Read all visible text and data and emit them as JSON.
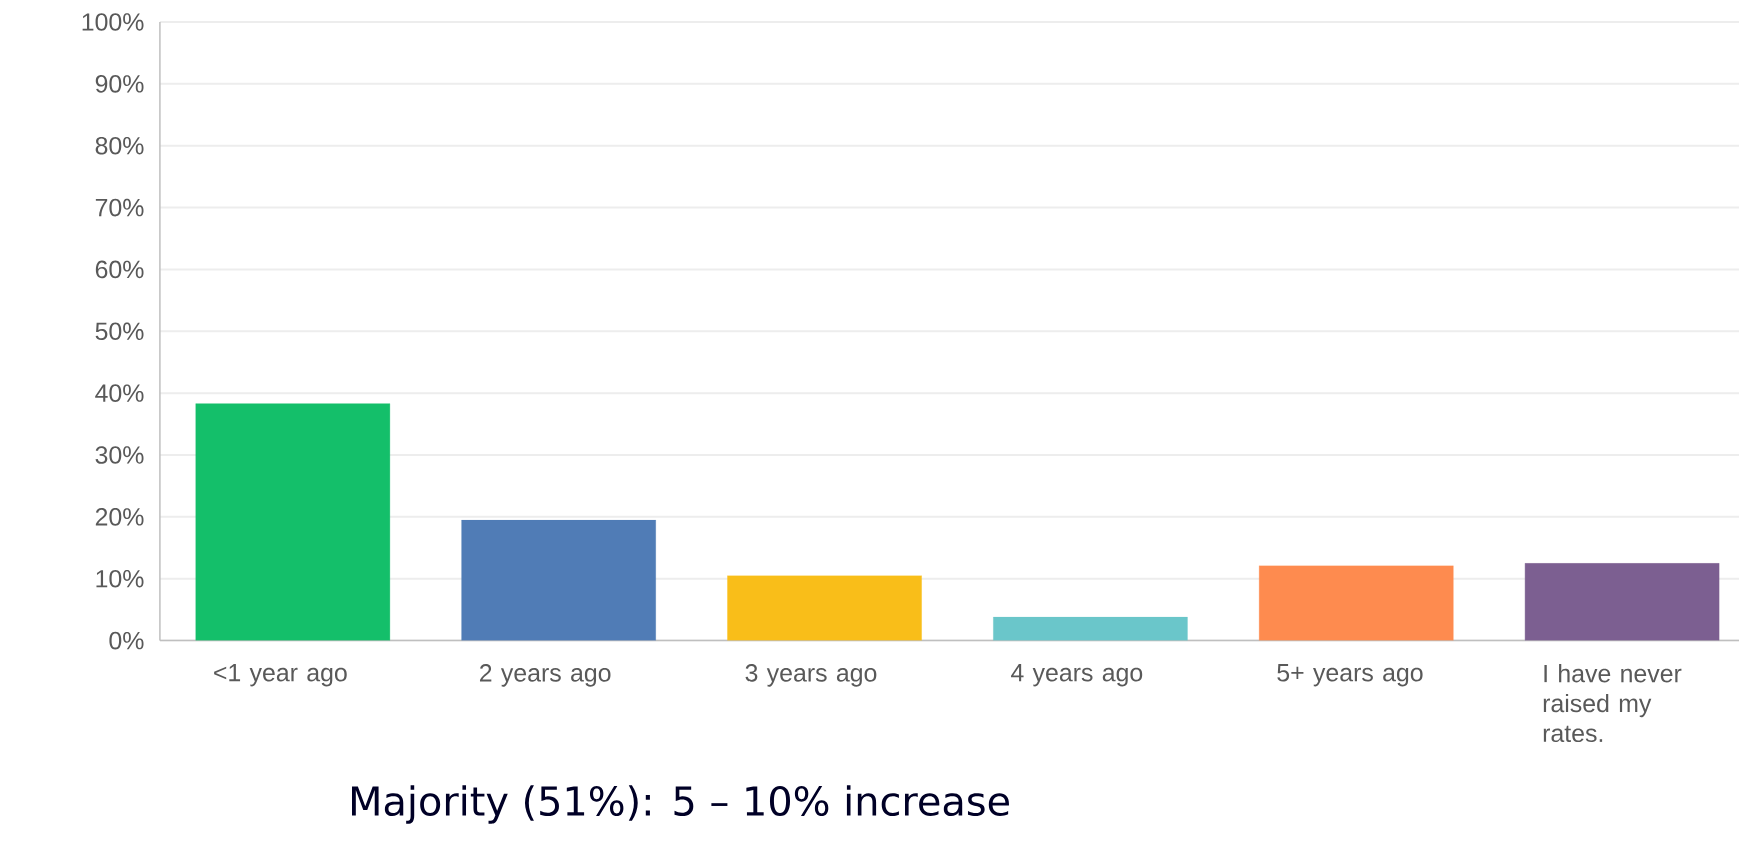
{
  "chart_data": {
    "type": "bar",
    "categories": [
      "<1 year ago",
      "2 years ago",
      "3 years ago",
      "4 years ago",
      "5+ years ago",
      "I have never raised my rates."
    ],
    "values": [
      38.3,
      19.5,
      10.5,
      3.8,
      12.1,
      12.5
    ],
    "colors": [
      "#14bf6a",
      "#507cb6",
      "#f9be19",
      "#6ac6ca",
      "#fe8b4f",
      "#7c5f91"
    ],
    "ylim": [
      0,
      100
    ],
    "yticks": [
      {
        "value": 0,
        "label": "0%"
      },
      {
        "value": 10,
        "label": "10%"
      },
      {
        "value": 20,
        "label": "20%"
      },
      {
        "value": 30,
        "label": "30%"
      },
      {
        "value": 40,
        "label": "40%"
      },
      {
        "value": 50,
        "label": "50%"
      },
      {
        "value": 60,
        "label": "60%"
      },
      {
        "value": 70,
        "label": "70%"
      },
      {
        "value": 80,
        "label": "80%"
      },
      {
        "value": 90,
        "label": "90%"
      },
      {
        "value": 100,
        "label": "100%"
      }
    ],
    "grid": "y",
    "annotations": [
      "Majority (51%): 5 – 10% increase"
    ]
  }
}
